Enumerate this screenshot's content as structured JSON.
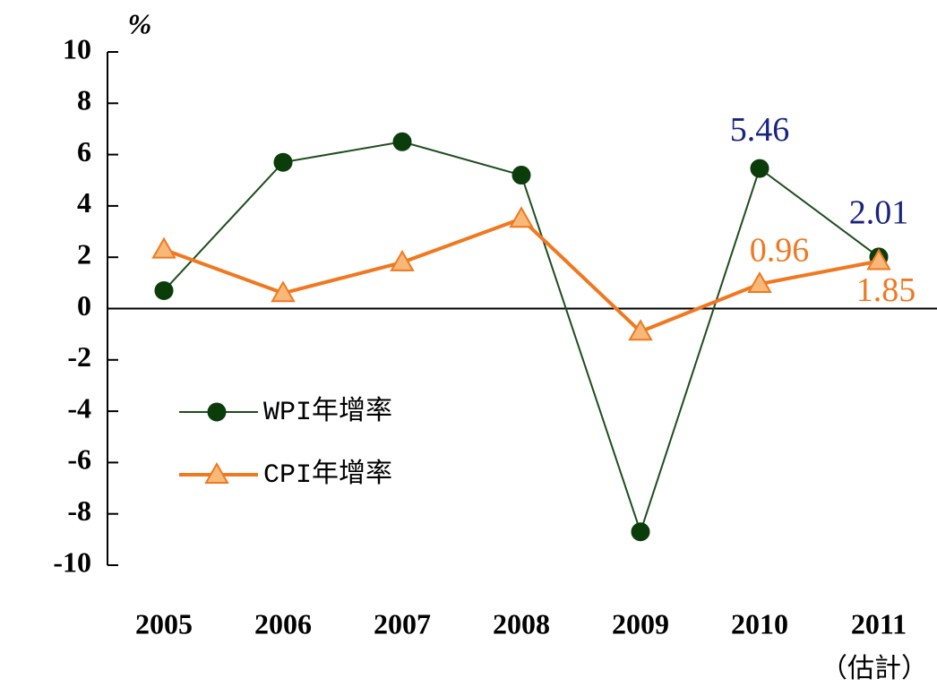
{
  "chart_data": {
    "type": "line",
    "y_label": "%",
    "categories": [
      "2005",
      "2006",
      "2007",
      "2008",
      "2009",
      "2010",
      "2011"
    ],
    "x_annotation": "（估計）",
    "series": [
      {
        "name": "WPI年增率",
        "color": "#1e4d1e",
        "marker": "circle",
        "marker_color": "#0b3d0b",
        "values": [
          0.7,
          5.7,
          6.5,
          5.2,
          -8.7,
          5.46,
          2.01
        ],
        "value_labels": [
          null,
          null,
          null,
          null,
          null,
          "5.46",
          "2.01"
        ],
        "label_color": "#1a237e"
      },
      {
        "name": "CPI年增率",
        "color": "#f07820",
        "marker": "triangle",
        "marker_color": "#f8b878",
        "values": [
          2.3,
          0.6,
          1.8,
          3.5,
          -0.9,
          0.96,
          1.85
        ],
        "value_labels": [
          null,
          null,
          null,
          null,
          null,
          "0.96",
          "1.85"
        ],
        "label_color": "#f07820"
      }
    ],
    "ylim": [
      -10,
      10
    ],
    "yticks": [
      -10,
      -8,
      -6,
      -4,
      -2,
      0,
      2,
      4,
      6,
      8,
      10
    ]
  }
}
